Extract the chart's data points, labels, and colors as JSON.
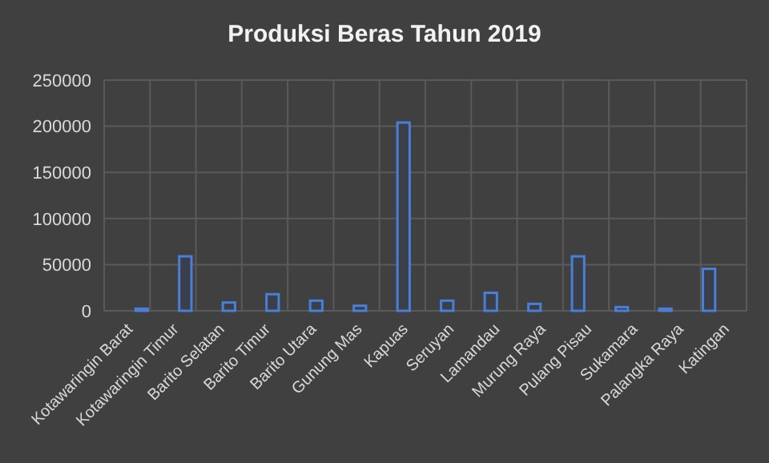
{
  "chart_data": {
    "type": "bar",
    "title": "Produksi Beras Tahun 2019",
    "categories": [
      "Kotawaringin Barat",
      "Kotawaringin Timur",
      "Barito Selatan",
      "Barito Timur",
      "Barito Utara",
      "Gunung Mas",
      "Kapuas",
      "Seruyan",
      "Lamandau",
      "Murung Raya",
      "Pulang Pisau",
      "Sukamara",
      "Palangka Raya",
      "Katingan"
    ],
    "values": [
      2300,
      59000,
      9000,
      18000,
      11000,
      5500,
      204000,
      11000,
      19500,
      7500,
      59000,
      4000,
      2300,
      45500
    ],
    "color": "#4a7fd6",
    "ylim": [
      0,
      250000
    ],
    "yticks": [
      0,
      50000,
      100000,
      150000,
      200000,
      250000
    ],
    "grid": true
  }
}
